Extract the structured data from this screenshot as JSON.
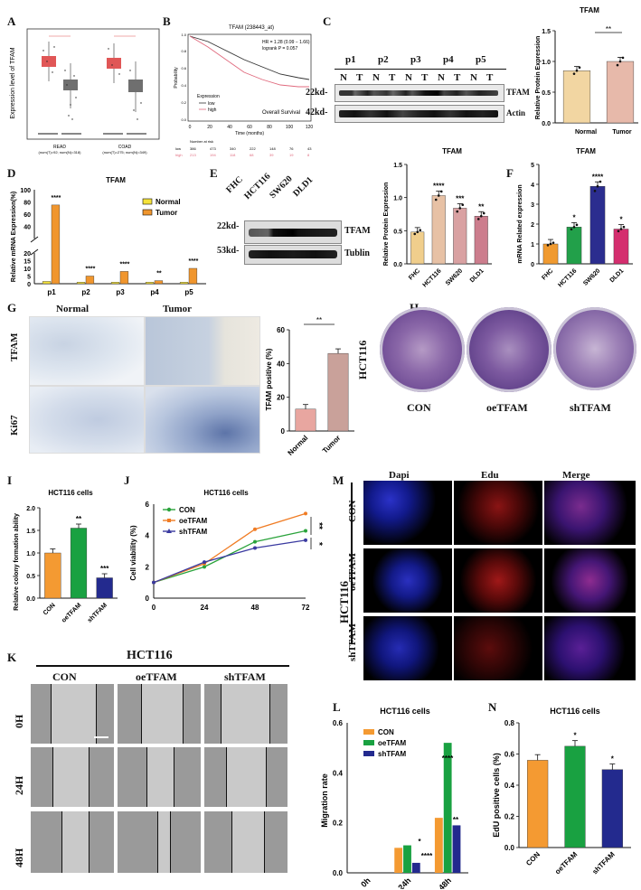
{
  "panels": {
    "A": "A",
    "B": "B",
    "C": "C",
    "D": "D",
    "E": "E",
    "F": "F",
    "G": "G",
    "H": "H",
    "I": "I",
    "J": "J",
    "K": "K",
    "L": "L",
    "M": "M",
    "N": "N"
  },
  "panelA": {
    "ylabel": "Expression level of TFAM",
    "groups": [
      "READ",
      "COAD"
    ],
    "group_notes": [
      "(num(T)=92; num(N)=318)",
      "(num(T)=275; num(N)=349)"
    ],
    "colors": {
      "tumor": "#e05656",
      "normal": "#6f6f6f"
    }
  },
  "panelB": {
    "title": "TFAM (238443_at)",
    "hr": "HR = 1.28 (0.99 − 1.66)",
    "logrank": "logrank P = 0.057",
    "legend_title": "Expression",
    "legend": [
      "low",
      "high"
    ],
    "inset": "Overall Survival",
    "ylabel": "Probability",
    "xlabel": "Time (months)",
    "xticks": [
      "0",
      "20",
      "40",
      "60",
      "80",
      "100",
      "120"
    ],
    "yticks": [
      "0.0",
      "0.2",
      "0.4",
      "0.6",
      "0.8",
      "1.0"
    ],
    "risk_title": "Number at risk",
    "risk_rows": [
      {
        "label": "low",
        "values": [
          "386",
          "473",
          "340",
          "222",
          "148",
          "76",
          "43"
        ]
      },
      {
        "label": "high",
        "values": [
          "213",
          "194",
          "118",
          "68",
          "39",
          "19",
          "8"
        ]
      }
    ]
  },
  "panelC": {
    "pairs": [
      "p1",
      "p2",
      "p3",
      "p4",
      "p5"
    ],
    "lanes": [
      "N",
      "T",
      "N",
      "T",
      "N",
      "T",
      "N",
      "T",
      "N",
      "T"
    ],
    "mw": [
      "22kd-",
      "42kd-"
    ],
    "bands": [
      "TFAM",
      "Actin"
    ],
    "chart": {
      "title": "TFAM",
      "ylabel": "Relative Protein Expression",
      "categories": [
        "Normal",
        "Tumor"
      ],
      "sig": "**"
    }
  },
  "panelD": {
    "title": "TFAM",
    "ylabel": "Relative mRNA Expression(%)",
    "legend": [
      "Normal",
      "Tumor"
    ],
    "categories": [
      "p1",
      "p2",
      "p3",
      "p4",
      "p5"
    ],
    "sig": [
      "****",
      "****",
      "****",
      "**",
      "****"
    ]
  },
  "panelE": {
    "lanes": [
      "FHC",
      "HCT116",
      "SW620",
      "DLD1"
    ],
    "mw": [
      "22kd-",
      "53kd-"
    ],
    "bands": [
      "TFAM",
      "Tublin"
    ],
    "chart": {
      "title": "TFAM",
      "ylabel": "Relative Protein Expression",
      "sig": [
        "",
        "****",
        "***",
        "**"
      ]
    }
  },
  "panelF": {
    "title": "TFAM",
    "ylabel": "mRNA Related expression",
    "sig": [
      "",
      "*",
      "****",
      "*"
    ]
  },
  "panelG": {
    "cols": [
      "Normal",
      "Tumor"
    ],
    "rows": [
      "TFAM",
      "Ki67"
    ],
    "chart": {
      "ylabel": "TFAM positive (%)",
      "categories": [
        "Normal",
        "Tumor"
      ],
      "sig": "**"
    }
  },
  "panelH": {
    "cell": "HCT116",
    "labels": [
      "CON",
      "oeTFAM",
      "shTFAM"
    ]
  },
  "panelI": {
    "title": "HCT116 cells",
    "ylabel": "Relative colony formation ability",
    "sig": [
      "",
      "**",
      "***"
    ]
  },
  "panelJ": {
    "title": "HCT116 cells",
    "ylabel": "Cell viability (%)",
    "legend": [
      "CON",
      "oeTFAM",
      "shTFAM"
    ],
    "sig": [
      "**",
      "*"
    ]
  },
  "panelK": {
    "cell": "HCT116",
    "cols": [
      "CON",
      "oeTFAM",
      "shTFAM"
    ],
    "rows": [
      "0H",
      "24H",
      "48H"
    ]
  },
  "panelL": {
    "title": "HCT116 cells",
    "ylabel": "Migration rate",
    "legend": [
      "CON",
      "oeTFAM",
      "shTFAM"
    ],
    "sig24": [
      "*",
      "****"
    ],
    "sig48": [
      "****",
      "**"
    ]
  },
  "panelM": {
    "cell": "HCT116",
    "cols": [
      "Dapi",
      "Edu",
      "Merge"
    ],
    "rows": [
      "CON",
      "oeTFAM",
      "shTFAM"
    ]
  },
  "panelN": {
    "title": "HCT116 cells",
    "ylabel": "EdU positive cells (%)",
    "sig": [
      "",
      "*",
      "*"
    ]
  },
  "chart_data": [
    {
      "id": "C-right",
      "type": "bar",
      "title": "TFAM",
      "ylabel": "Relative Protein Expression",
      "categories": [
        "Normal",
        "Tumor"
      ],
      "values": [
        0.85,
        1.0
      ],
      "ylim": [
        0,
        1.5
      ],
      "yticks": [
        "0.0",
        "0.5",
        "1.0",
        "1.5"
      ],
      "colors": [
        "#f2d6a2",
        "#e7b9aa"
      ]
    },
    {
      "id": "D",
      "type": "bar",
      "title": "TFAM",
      "ylabel": "Relative mRNA Expression(%)",
      "categories": [
        "p1",
        "p2",
        "p3",
        "p4",
        "p5"
      ],
      "series": [
        {
          "name": "Normal",
          "values": [
            1.5,
            1,
            1,
            1,
            1
          ],
          "color": "#f5e23a"
        },
        {
          "name": "Tumor",
          "values": [
            75,
            5,
            8,
            2,
            10
          ],
          "color": "#f0962e"
        }
      ],
      "yticks": [
        "0",
        "5",
        "10",
        "15",
        "20",
        "40",
        "60",
        "80",
        "100"
      ]
    },
    {
      "id": "E-right",
      "type": "bar",
      "title": "TFAM",
      "ylabel": "Relative Protein Expression",
      "categories": [
        "FHC",
        "HCT116",
        "SW620",
        "DLD1"
      ],
      "values": [
        0.48,
        1.03,
        0.84,
        0.72
      ],
      "ylim": [
        0,
        1.5
      ],
      "yticks": [
        "0.0",
        "0.5",
        "1.0",
        "1.5"
      ],
      "colors": [
        "#f0ce8c",
        "#e7c1a5",
        "#d9a1a2",
        "#cc7d8d"
      ]
    },
    {
      "id": "F",
      "type": "bar",
      "title": "TFAM",
      "ylabel": "mRNA Related expression",
      "categories": [
        "FHC",
        "HCT116",
        "SW620",
        "DLD1"
      ],
      "values": [
        1.0,
        1.85,
        3.9,
        1.75
      ],
      "ylim": [
        0,
        5
      ],
      "yticks": [
        "0",
        "1",
        "2",
        "3",
        "4",
        "5"
      ],
      "colors": [
        "#f09a30",
        "#22a04a",
        "#2b2d8f",
        "#d42e6e"
      ]
    },
    {
      "id": "G-right",
      "type": "bar",
      "ylabel": "TFAM positive (%)",
      "categories": [
        "Normal",
        "Tumor"
      ],
      "values": [
        13,
        46
      ],
      "ylim": [
        0,
        60
      ],
      "yticks": [
        "0",
        "20",
        "40",
        "60"
      ],
      "colors": [
        "#e8a6a0",
        "#c9a19a"
      ]
    },
    {
      "id": "I",
      "type": "bar",
      "title": "HCT116 cells",
      "ylabel": "Relative colony formation ability",
      "categories": [
        "CON",
        "oeTFAM",
        "shTFAM"
      ],
      "values": [
        1.0,
        1.55,
        0.45
      ],
      "ylim": [
        0,
        2.0
      ],
      "yticks": [
        "0.0",
        "0.5",
        "1.0",
        "1.5",
        "2.0"
      ],
      "colors": [
        "#f49a32",
        "#19a141",
        "#232a8e"
      ]
    },
    {
      "id": "J",
      "type": "line",
      "title": "HCT116 cells",
      "ylabel": "Cell viability (%)",
      "x": [
        0,
        24,
        48,
        72
      ],
      "xticks": [
        "0",
        "24",
        "48",
        "72"
      ],
      "ylim": [
        0,
        6
      ],
      "yticks": [
        "0",
        "2",
        "4",
        "6"
      ],
      "series": [
        {
          "name": "CON",
          "values": [
            1.0,
            2.0,
            3.6,
            4.3
          ],
          "color": "#2aa33b"
        },
        {
          "name": "oeTFAM",
          "values": [
            1.0,
            2.2,
            4.4,
            5.4
          ],
          "color": "#f07c24"
        },
        {
          "name": "shTFAM",
          "values": [
            1.0,
            2.3,
            3.2,
            3.7
          ],
          "color": "#3a3aa0"
        }
      ]
    },
    {
      "id": "L",
      "type": "bar",
      "title": "HCT116 cells",
      "ylabel": "Migration rate",
      "categories": [
        "0h",
        "24h",
        "48h"
      ],
      "ylim": [
        0,
        0.6
      ],
      "yticks": [
        "0.0",
        "0.2",
        "0.4",
        "0.6"
      ],
      "series": [
        {
          "name": "CON",
          "values": [
            0,
            0.1,
            0.22
          ],
          "color": "#f49a32"
        },
        {
          "name": "oeTFAM",
          "values": [
            0,
            0.11,
            0.52
          ],
          "color": "#19a141"
        },
        {
          "name": "shTFAM",
          "values": [
            0,
            0.04,
            0.19
          ],
          "color": "#232a8e"
        }
      ]
    },
    {
      "id": "N",
      "type": "bar",
      "title": "HCT116 cells",
      "ylabel": "EdU positive cells (%)",
      "categories": [
        "CON",
        "oeTFAM",
        "shTFAM"
      ],
      "values": [
        0.56,
        0.65,
        0.5
      ],
      "ylim": [
        0,
        0.8
      ],
      "yticks": [
        "0.0",
        "0.2",
        "0.4",
        "0.6",
        "0.8"
      ],
      "colors": [
        "#f49a32",
        "#19a141",
        "#232a8e"
      ]
    }
  ]
}
